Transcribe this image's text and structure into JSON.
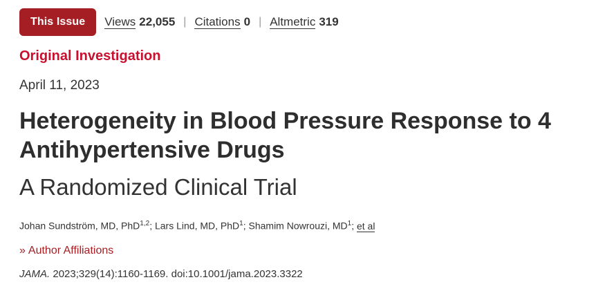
{
  "metrics": {
    "issue_label": "This Issue",
    "views_label": "Views",
    "views_value": "22,055",
    "citations_label": "Citations",
    "citations_value": "0",
    "altmetric_label": "Altmetric",
    "altmetric_value": "319",
    "separator": "|"
  },
  "article": {
    "type": "Original Investigation",
    "date": "April 11, 2023",
    "title": "Heterogeneity in Blood Pressure Response to 4 Antihypertensive Drugs",
    "subtitle": "A Randomized Clinical Trial"
  },
  "authors": [
    {
      "name": "Johan Sundström, MD, PhD",
      "sup": "1,2"
    },
    {
      "name": "Lars Lind, MD, PhD",
      "sup": "1"
    },
    {
      "name": "Shamim Nowrouzi, MD",
      "sup": "1"
    }
  ],
  "authors_etal": "et al",
  "affiliations_label": "Author Affiliations",
  "citation": {
    "journal": "JAMA.",
    "details": "2023;329(14):1160-1169. doi:10.1001/jama.2023.3322"
  },
  "colors": {
    "accent": "#a41e23",
    "type_red": "#c8102e"
  }
}
